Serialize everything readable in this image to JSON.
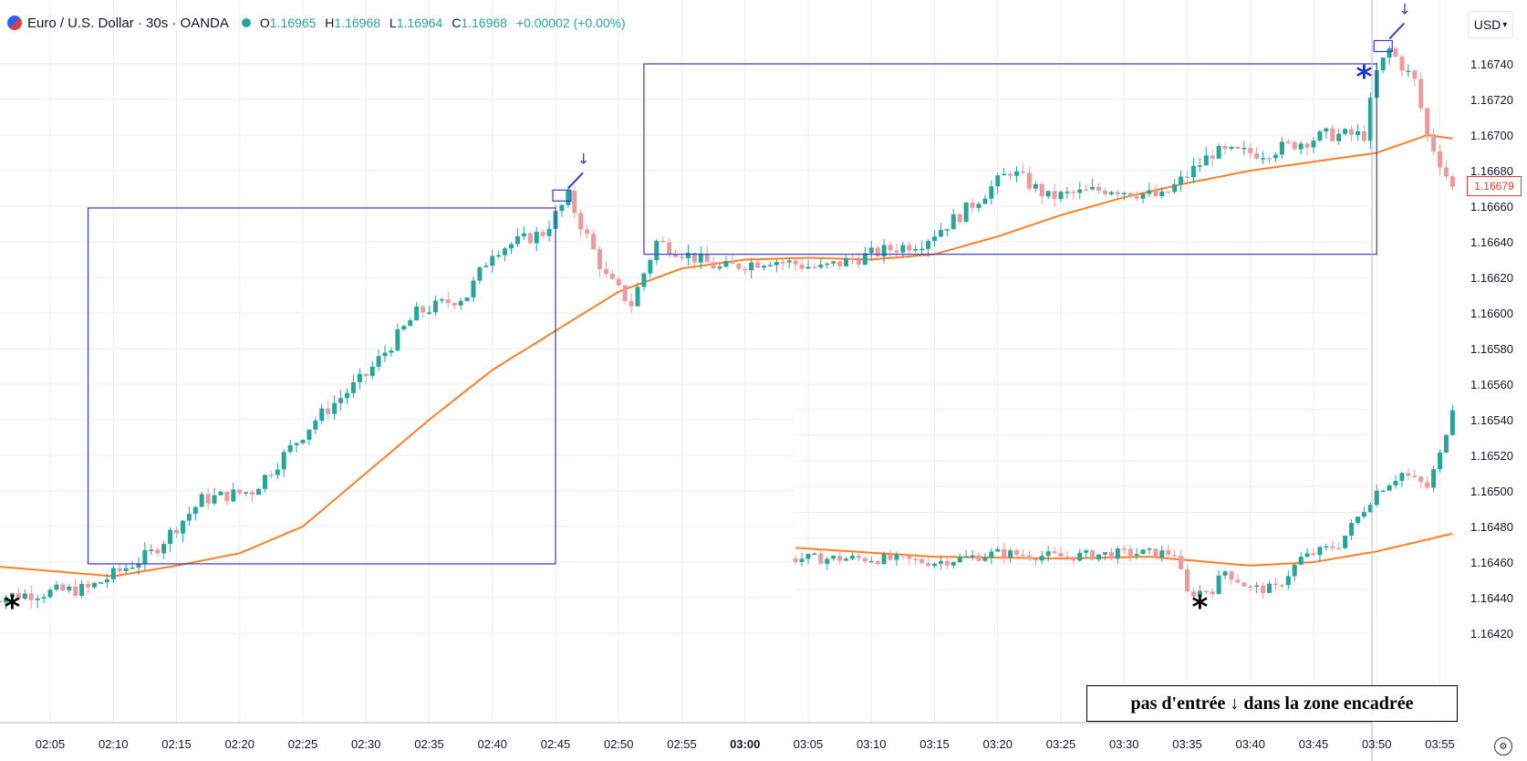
{
  "header": {
    "title": "Euro / U.S. Dollar · 30s · OANDA",
    "ohlc": [
      {
        "k": "O",
        "v": "1.16965"
      },
      {
        "k": "H",
        "v": "1.16968"
      },
      {
        "k": "L",
        "v": "1.16964"
      },
      {
        "k": "C",
        "v": "1.16968"
      },
      {
        "k": "",
        "v": "+0.00002 (+0.00%)"
      }
    ]
  },
  "currency": "USD",
  "last_price": "1.16679",
  "annotation": "pas d'entrée ↓ dans la zone encadrée",
  "colors": {
    "up": "#26a69a",
    "down": "#ef9a9a",
    "ma": "#ff7f27",
    "box": "#3a3acd",
    "grid": "#e9edf3"
  },
  "chart_data": [
    {
      "type": "candlestick",
      "instrument": "Euro / U.S. Dollar",
      "interval": "30s",
      "y_ticks": [
        "1.16740",
        "1.16720",
        "1.16700",
        "1.16680",
        "1.16660",
        "1.16640",
        "1.16620",
        "1.16600",
        "1.16580",
        "1.16560",
        "1.16540",
        "1.16520",
        "1.16500",
        "1.16480",
        "1.16460",
        "1.16440",
        "1.16420"
      ],
      "ylim": [
        1.1641,
        1.1676
      ],
      "x_ticks": [
        "02:05",
        "02:10",
        "02:15",
        "02:20",
        "02:25",
        "02:30",
        "02:35",
        "02:40",
        "02:45",
        "02:50",
        "02:55",
        "03:00",
        "03:05",
        "03:10",
        "03:15",
        "03:20",
        "03:25",
        "03:30",
        "03:35",
        "03:40",
        "03:45",
        "03:50",
        "03:55"
      ],
      "x_anchors": [
        {
          "t": "02:00",
          "price": 1.1644
        },
        {
          "t": "02:08",
          "price": 1.16445
        },
        {
          "t": "02:13",
          "price": 1.16465
        },
        {
          "t": "02:17",
          "price": 1.16495
        },
        {
          "t": "02:21",
          "price": 1.165
        },
        {
          "t": "02:26",
          "price": 1.1654
        },
        {
          "t": "02:30",
          "price": 1.16565
        },
        {
          "t": "02:34",
          "price": 1.166
        },
        {
          "t": "02:38",
          "price": 1.1661
        },
        {
          "t": "02:40",
          "price": 1.16635
        },
        {
          "t": "02:44",
          "price": 1.16645
        },
        {
          "t": "02:46",
          "price": 1.16665
        },
        {
          "t": "02:49",
          "price": 1.1662
        },
        {
          "t": "02:51",
          "price": 1.16605
        },
        {
          "t": "02:53",
          "price": 1.1664
        },
        {
          "t": "02:58",
          "price": 1.16625
        },
        {
          "t": "03:02",
          "price": 1.1663
        },
        {
          "t": "03:06",
          "price": 1.16625
        },
        {
          "t": "03:11",
          "price": 1.16635
        },
        {
          "t": "03:14",
          "price": 1.1664
        },
        {
          "t": "03:17",
          "price": 1.16655
        },
        {
          "t": "03:21",
          "price": 1.1668
        },
        {
          "t": "03:24",
          "price": 1.16665
        },
        {
          "t": "03:29",
          "price": 1.1667
        },
        {
          "t": "03:33",
          "price": 1.16665
        },
        {
          "t": "03:37",
          "price": 1.1669
        },
        {
          "t": "03:41",
          "price": 1.1669
        },
        {
          "t": "03:46",
          "price": 1.167
        },
        {
          "t": "03:49",
          "price": 1.167
        },
        {
          "t": "03:50",
          "price": 1.16735
        },
        {
          "t": "03:51",
          "price": 1.16748
        },
        {
          "t": "03:53",
          "price": 1.1673
        },
        {
          "t": "03:54",
          "price": 1.167
        },
        {
          "t": "03:56",
          "price": 1.1667
        }
      ],
      "ma_anchors": [
        {
          "t": "02:00",
          "price": 1.16458
        },
        {
          "t": "02:10",
          "price": 1.16452
        },
        {
          "t": "02:15",
          "price": 1.16458
        },
        {
          "t": "02:20",
          "price": 1.16465
        },
        {
          "t": "02:25",
          "price": 1.1648
        },
        {
          "t": "02:30",
          "price": 1.1651
        },
        {
          "t": "02:35",
          "price": 1.1654
        },
        {
          "t": "02:40",
          "price": 1.16568
        },
        {
          "t": "02:45",
          "price": 1.1659
        },
        {
          "t": "02:50",
          "price": 1.16612
        },
        {
          "t": "02:55",
          "price": 1.16625
        },
        {
          "t": "03:00",
          "price": 1.1663
        },
        {
          "t": "03:05",
          "price": 1.16631
        },
        {
          "t": "03:10",
          "price": 1.1663
        },
        {
          "t": "03:15",
          "price": 1.16633
        },
        {
          "t": "03:20",
          "price": 1.16643
        },
        {
          "t": "03:25",
          "price": 1.16655
        },
        {
          "t": "03:30",
          "price": 1.16665
        },
        {
          "t": "03:35",
          "price": 1.16673
        },
        {
          "t": "03:40",
          "price": 1.1668
        },
        {
          "t": "03:45",
          "price": 1.16685
        },
        {
          "t": "03:50",
          "price": 1.1669
        },
        {
          "t": "03:54",
          "price": 1.167
        },
        {
          "t": "03:56",
          "price": 1.16698
        }
      ],
      "boxes": [
        {
          "t0": "02:08",
          "t1": "02:45",
          "p0": 1.16459,
          "p1": 1.16659
        },
        {
          "t0": "02:52",
          "t1": "03:50",
          "p0": 1.16633,
          "p1": 1.1674
        }
      ],
      "markers": [
        {
          "t": "02:02",
          "price": 1.16438,
          "label": "*",
          "color": "#000000"
        },
        {
          "t": "03:49",
          "price": 1.16736,
          "label": "*",
          "color": "#2233cc"
        }
      ]
    },
    {
      "type": "candlestick",
      "inset": true,
      "x_ticks": [
        "03:05",
        "03:10",
        "03:15",
        "03:20",
        "03:25",
        "03:30",
        "03:35",
        "03:40",
        "03:45",
        "03:50",
        "03:55"
      ],
      "x_anchors": [
        {
          "t": "03:04",
          "price": 1.16462
        },
        {
          "t": "03:10",
          "price": 1.16462
        },
        {
          "t": "03:15",
          "price": 1.1646
        },
        {
          "t": "03:20",
          "price": 1.16465
        },
        {
          "t": "03:25",
          "price": 1.16463
        },
        {
          "t": "03:30",
          "price": 1.16465
        },
        {
          "t": "03:34",
          "price": 1.16465
        },
        {
          "t": "03:35",
          "price": 1.16442
        },
        {
          "t": "03:37",
          "price": 1.16445
        },
        {
          "t": "03:38",
          "price": 1.16455
        },
        {
          "t": "03:40",
          "price": 1.16445
        },
        {
          "t": "03:42",
          "price": 1.16445
        },
        {
          "t": "03:44",
          "price": 1.16462
        },
        {
          "t": "03:47",
          "price": 1.1647
        },
        {
          "t": "03:50",
          "price": 1.165
        },
        {
          "t": "03:52",
          "price": 1.1651
        },
        {
          "t": "03:54",
          "price": 1.16502
        },
        {
          "t": "03:55",
          "price": 1.1652
        },
        {
          "t": "03:56",
          "price": 1.16548
        }
      ],
      "ma_anchors": [
        {
          "t": "03:04",
          "price": 1.16468
        },
        {
          "t": "03:15",
          "price": 1.16463
        },
        {
          "t": "03:25",
          "price": 1.16462
        },
        {
          "t": "03:32",
          "price": 1.16463
        },
        {
          "t": "03:40",
          "price": 1.16458
        },
        {
          "t": "03:45",
          "price": 1.1646
        },
        {
          "t": "03:50",
          "price": 1.16466
        },
        {
          "t": "03:56",
          "price": 1.16476
        }
      ],
      "markers": [
        {
          "t": "03:36",
          "price": 1.16438,
          "label": "*",
          "color": "#000000"
        }
      ]
    }
  ]
}
